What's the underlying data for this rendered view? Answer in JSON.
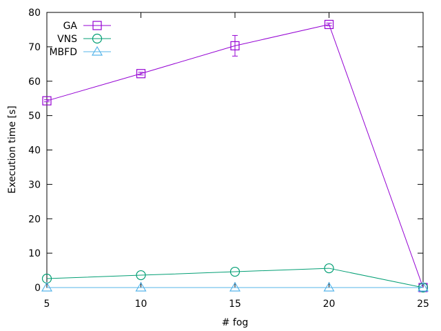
{
  "chart_data": {
    "type": "line",
    "title": "",
    "xlabel": "# fog",
    "ylabel": "Execution time [s]",
    "x": [
      5,
      10,
      15,
      20,
      25
    ],
    "xlim": [
      5,
      25
    ],
    "ylim": [
      0,
      80
    ],
    "x_ticks": [
      5,
      10,
      15,
      20,
      25
    ],
    "y_ticks": [
      0,
      10,
      20,
      30,
      40,
      50,
      60,
      70,
      80
    ],
    "grid": false,
    "legend_position": "top-left",
    "series": [
      {
        "name": "GA",
        "color": "#9400d3",
        "marker": "square-icon",
        "values": [
          54.3,
          62.2,
          70.3,
          76.5,
          0
        ],
        "error": [
          0.3,
          0.4,
          3.0,
          0.4,
          0
        ]
      },
      {
        "name": "VNS",
        "color": "#009e73",
        "marker": "circle-icon",
        "values": [
          2.6,
          3.6,
          4.6,
          5.6,
          0
        ],
        "error": [
          0,
          0,
          0,
          0,
          0
        ]
      },
      {
        "name": "MBFD",
        "color": "#56b4e9",
        "marker": "triangle-icon",
        "values": [
          0,
          0,
          0,
          0,
          0
        ],
        "error": [
          0,
          0,
          0,
          0,
          0
        ]
      }
    ]
  }
}
